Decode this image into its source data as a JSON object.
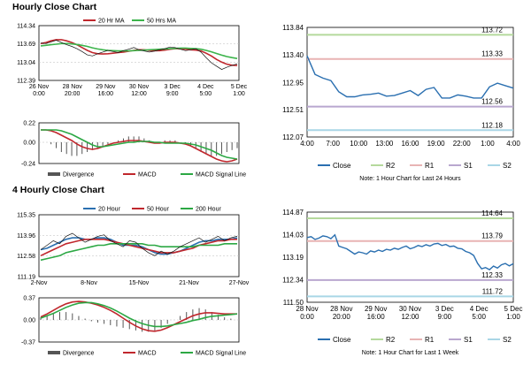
{
  "sections": [
    {
      "title": "Hourly Close Chart"
    },
    {
      "title": "4 Hourly Close Chart"
    }
  ],
  "chart_data": [
    {
      "id": "hourly-price",
      "type": "line",
      "title": "Hourly Close Chart",
      "legend": [
        "20 Hr MA",
        "50 Hrs MA"
      ],
      "yticks": [
        "114.34",
        "113.69",
        "113.04",
        "112.39"
      ],
      "ylim": [
        112.39,
        114.34
      ],
      "xticks": [
        [
          "26 Nov",
          "0:00"
        ],
        [
          "28 Nov",
          "20:00"
        ],
        [
          "29 Nov",
          "16:00"
        ],
        [
          "30 Nov",
          "12:00"
        ],
        [
          "3 Dec",
          "9:00"
        ],
        [
          "4 Dec",
          "5:00"
        ],
        [
          "5 Dec",
          "1:00"
        ]
      ],
      "series": [
        {
          "name": "Close",
          "values": [
            113.72,
            113.7,
            113.76,
            113.82,
            113.74,
            113.66,
            113.6,
            113.52,
            113.42,
            113.3,
            113.26,
            113.34,
            113.4,
            113.46,
            113.42,
            113.38,
            113.45,
            113.5,
            113.56,
            113.48,
            113.44,
            113.4,
            113.43,
            113.48,
            113.52,
            113.58,
            113.56,
            113.5,
            113.45,
            113.48,
            113.52,
            113.4,
            113.2,
            113.02,
            112.9,
            112.78,
            112.86,
            112.92,
            112.98
          ]
        },
        {
          "name": "20 Hr MA",
          "values": [
            113.7,
            113.74,
            113.8,
            113.84,
            113.84,
            113.8,
            113.74,
            113.66,
            113.56,
            113.46,
            113.38,
            113.34,
            113.33,
            113.34,
            113.36,
            113.38,
            113.4,
            113.43,
            113.46,
            113.48,
            113.48,
            113.46,
            113.45,
            113.45,
            113.47,
            113.5,
            113.52,
            113.52,
            113.5,
            113.48,
            113.47,
            113.44,
            113.36,
            113.26,
            113.14,
            113.04,
            112.97,
            112.93,
            112.92
          ]
        },
        {
          "name": "50 Hrs MA",
          "values": [
            113.62,
            113.64,
            113.66,
            113.68,
            113.7,
            113.7,
            113.69,
            113.67,
            113.64,
            113.6,
            113.55,
            113.51,
            113.48,
            113.46,
            113.45,
            113.44,
            113.44,
            113.44,
            113.45,
            113.46,
            113.47,
            113.48,
            113.49,
            113.5,
            113.51,
            113.52,
            113.53,
            113.54,
            113.54,
            113.53,
            113.52,
            113.5,
            113.46,
            113.41,
            113.35,
            113.29,
            113.24,
            113.2,
            113.17
          ]
        }
      ]
    },
    {
      "id": "hourly-macd",
      "type": "bar",
      "legend": [
        "Divergence",
        "MACD",
        "MACD Signal Line"
      ],
      "yticks": [
        "0.22",
        "0.00",
        "-0.24"
      ],
      "ylim": [
        -0.24,
        0.22
      ],
      "series": [
        {
          "name": "Divergence",
          "values": [
            0.0,
            0.0,
            -0.01,
            -0.03,
            -0.05,
            -0.06,
            -0.07,
            -0.07,
            -0.06,
            -0.05,
            -0.04,
            -0.03,
            -0.02,
            -0.01,
            0.0,
            0.01,
            0.02,
            0.03,
            0.03,
            0.03,
            0.02,
            0.01,
            0.0,
            0.0,
            0.01,
            0.01,
            0.01,
            0.0,
            -0.01,
            -0.02,
            -0.03,
            -0.05,
            -0.06,
            -0.07,
            -0.07,
            -0.06,
            -0.05,
            -0.04,
            -0.03
          ]
        },
        {
          "name": "MACD",
          "values": [
            0.14,
            0.14,
            0.13,
            0.11,
            0.08,
            0.05,
            0.02,
            -0.02,
            -0.05,
            -0.07,
            -0.08,
            -0.07,
            -0.05,
            -0.03,
            -0.01,
            0.0,
            0.01,
            0.02,
            0.02,
            0.02,
            0.01,
            0.0,
            -0.01,
            -0.01,
            0.0,
            0.0,
            0.0,
            -0.01,
            -0.02,
            -0.04,
            -0.07,
            -0.1,
            -0.13,
            -0.16,
            -0.19,
            -0.21,
            -0.22,
            -0.21,
            -0.19
          ]
        },
        {
          "name": "MACD Signal Line",
          "values": [
            0.14,
            0.14,
            0.14,
            0.14,
            0.13,
            0.11,
            0.09,
            0.06,
            0.03,
            0.0,
            -0.03,
            -0.05,
            -0.05,
            -0.04,
            -0.03,
            -0.02,
            -0.01,
            0.0,
            0.0,
            0.01,
            0.01,
            0.01,
            0.0,
            0.0,
            -0.01,
            -0.01,
            -0.01,
            -0.01,
            -0.01,
            -0.02,
            -0.03,
            -0.05,
            -0.07,
            -0.09,
            -0.12,
            -0.15,
            -0.17,
            -0.18,
            -0.19
          ]
        }
      ]
    },
    {
      "id": "hourly-24h",
      "type": "line",
      "yticks": [
        "113.84",
        "113.40",
        "112.95",
        "112.51",
        "112.07"
      ],
      "ylim": [
        112.07,
        113.84
      ],
      "xticks": [
        "4:00",
        "7:00",
        "10:00",
        "13:00",
        "16:00",
        "19:00",
        "22:00",
        "1:00",
        "4:00"
      ],
      "legend": [
        "Close",
        "R2",
        "R1",
        "S1",
        "S2"
      ],
      "note": "Note: 1 Hour Chart for Last 24 Hours",
      "levels": {
        "R2": 113.72,
        "R1": 113.33,
        "S1": 112.56,
        "S2": 112.18
      },
      "level_labels": {
        "R2": "113.72",
        "R1": "113.33",
        "S1": "112.56",
        "S2": "112.18"
      },
      "series": [
        {
          "name": "Close",
          "values": [
            113.38,
            113.08,
            113.02,
            112.98,
            112.8,
            112.72,
            112.72,
            112.75,
            112.76,
            112.78,
            112.73,
            112.74,
            112.78,
            112.82,
            112.74,
            112.84,
            112.87,
            112.7,
            112.7,
            112.75,
            112.73,
            112.7,
            112.7,
            112.88,
            112.94,
            112.9,
            112.86
          ]
        }
      ]
    },
    {
      "id": "fourhourly-price",
      "type": "line",
      "title": "4 Hourly Close Chart",
      "legend": [
        "20 Hour",
        "50 Hour",
        "200 Hour"
      ],
      "yticks": [
        "115.35",
        "113.96",
        "112.58",
        "111.19"
      ],
      "ylim": [
        111.19,
        115.35
      ],
      "xticks": [
        "2-Nov",
        "8-Nov",
        "15-Nov",
        "21-Nov",
        "27-Nov"
      ],
      "series": [
        {
          "name": "Close",
          "values": [
            113.0,
            113.3,
            113.6,
            113.4,
            113.9,
            114.1,
            113.8,
            113.5,
            113.7,
            113.9,
            114.0,
            113.6,
            113.4,
            113.2,
            113.6,
            113.5,
            113.1,
            112.8,
            112.6,
            112.9,
            112.7,
            112.9,
            113.2,
            113.4,
            113.6,
            113.8,
            113.5,
            113.7,
            113.9,
            113.6,
            113.8,
            113.9
          ]
        },
        {
          "name": "20 Hour",
          "values": [
            113.0,
            113.1,
            113.3,
            113.5,
            113.7,
            113.8,
            113.8,
            113.7,
            113.7,
            113.8,
            113.8,
            113.7,
            113.5,
            113.3,
            113.3,
            113.3,
            113.2,
            113.0,
            112.8,
            112.7,
            112.7,
            112.8,
            112.9,
            113.1,
            113.3,
            113.5,
            113.6,
            113.6,
            113.7,
            113.7,
            113.7,
            113.8
          ]
        },
        {
          "name": "50 Hour",
          "values": [
            112.6,
            112.8,
            113.0,
            113.2,
            113.4,
            113.5,
            113.6,
            113.7,
            113.7,
            113.7,
            113.7,
            113.6,
            113.5,
            113.4,
            113.3,
            113.2,
            113.1,
            113.0,
            112.9,
            112.8,
            112.8,
            112.8,
            112.9,
            113.0,
            113.1,
            113.3,
            113.4,
            113.5,
            113.6,
            113.6,
            113.7,
            113.7
          ]
        },
        {
          "name": "200 Hour",
          "values": [
            112.3,
            112.4,
            112.5,
            112.6,
            112.8,
            112.9,
            113.0,
            113.1,
            113.2,
            113.3,
            113.3,
            113.4,
            113.4,
            113.4,
            113.4,
            113.4,
            113.4,
            113.3,
            113.3,
            113.2,
            113.2,
            113.2,
            113.2,
            113.2,
            113.2,
            113.3,
            113.3,
            113.3,
            113.3,
            113.4,
            113.4,
            113.4
          ]
        }
      ]
    },
    {
      "id": "fourhourly-macd",
      "type": "bar",
      "legend": [
        "Divergence",
        "MACD",
        "MACD Signal Line"
      ],
      "yticks": [
        "0.37",
        "0.00",
        "-0.37"
      ],
      "ylim": [
        -0.37,
        0.37
      ],
      "series": [
        {
          "name": "Divergence",
          "values": [
            0.02,
            0.03,
            0.05,
            0.06,
            0.06,
            0.05,
            0.03,
            0.01,
            -0.01,
            -0.02,
            -0.03,
            -0.04,
            -0.05,
            -0.06,
            -0.07,
            -0.08,
            -0.09,
            -0.09,
            -0.08,
            -0.06,
            -0.03,
            0.0,
            0.03,
            0.06,
            0.08,
            0.09,
            0.08,
            0.06,
            0.04,
            0.02,
            0.01,
            0.0
          ]
        },
        {
          "name": "MACD",
          "values": [
            0.05,
            0.1,
            0.16,
            0.22,
            0.27,
            0.3,
            0.31,
            0.3,
            0.28,
            0.25,
            0.21,
            0.16,
            0.1,
            0.03,
            -0.04,
            -0.1,
            -0.15,
            -0.18,
            -0.19,
            -0.17,
            -0.13,
            -0.08,
            -0.03,
            0.02,
            0.07,
            0.1,
            0.12,
            0.12,
            0.11,
            0.1,
            0.1,
            0.1
          ]
        },
        {
          "name": "MACD Signal Line",
          "values": [
            0.03,
            0.07,
            0.11,
            0.16,
            0.21,
            0.25,
            0.28,
            0.29,
            0.29,
            0.27,
            0.24,
            0.2,
            0.15,
            0.09,
            0.03,
            -0.02,
            -0.06,
            -0.09,
            -0.11,
            -0.11,
            -0.1,
            -0.08,
            -0.06,
            -0.04,
            -0.01,
            0.01,
            0.04,
            0.06,
            0.07,
            0.08,
            0.09,
            0.1
          ]
        }
      ]
    },
    {
      "id": "fourhourly-week",
      "type": "line",
      "yticks": [
        "114.87",
        "114.03",
        "113.19",
        "112.34",
        "111.50"
      ],
      "ylim": [
        111.5,
        114.87
      ],
      "xticks": [
        [
          "28 Nov",
          "0:00"
        ],
        [
          "28 Nov",
          "20:00"
        ],
        [
          "29 Nov",
          "16:00"
        ],
        [
          "30 Nov",
          "12:00"
        ],
        [
          "3 Dec",
          "9:00"
        ],
        [
          "4 Dec",
          "5:00"
        ],
        [
          "5 Dec",
          "1:00"
        ]
      ],
      "legend": [
        "Close",
        "R2",
        "R1",
        "S1",
        "S2"
      ],
      "note": "Note: 1 Hour Chart for Last 1 Week",
      "levels": {
        "R2": 114.64,
        "R1": 113.79,
        "S1": 112.33,
        "S2": 111.72
      },
      "level_labels": {
        "R2": "114.64",
        "R1": "113.79",
        "S1": "112.33",
        "S2": "111.72"
      },
      "series": [
        {
          "name": "Close",
          "values": [
            113.92,
            113.95,
            113.85,
            113.9,
            113.98,
            113.95,
            113.88,
            114.02,
            113.6,
            113.55,
            113.5,
            113.4,
            113.3,
            113.38,
            113.35,
            113.3,
            113.42,
            113.38,
            113.45,
            113.4,
            113.48,
            113.45,
            113.52,
            113.48,
            113.55,
            113.6,
            113.5,
            113.55,
            113.62,
            113.58,
            113.65,
            113.6,
            113.68,
            113.7,
            113.62,
            113.66,
            113.58,
            113.6,
            113.52,
            113.5,
            113.4,
            113.35,
            113.25,
            112.95,
            112.75,
            112.8,
            112.72,
            112.85,
            112.78,
            112.9,
            112.95,
            112.86,
            112.94
          ]
        }
      ]
    }
  ],
  "colors": {
    "close": "#2a6fb0",
    "close_dark": "#111111",
    "ma20": "#c0272d",
    "ma50": "#2ca844",
    "ma50_hourly": "#3cb44b",
    "r2": "#b5d99c",
    "r1": "#e8b4b4",
    "s1": "#b9a7cf",
    "s2": "#a9d6e6",
    "divergence": "#555555"
  }
}
